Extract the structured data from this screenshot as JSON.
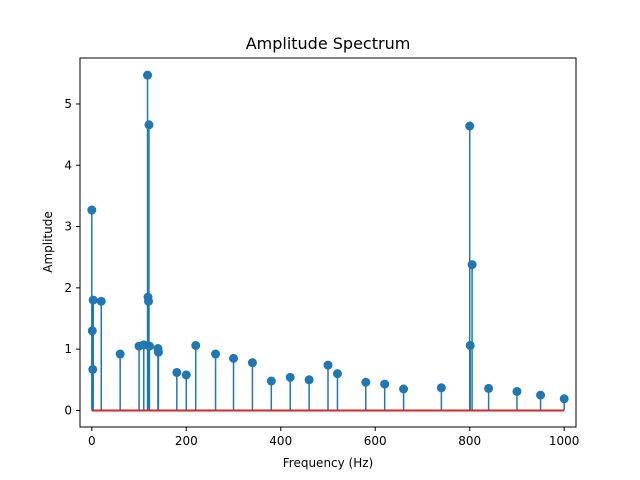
{
  "chart_data": {
    "type": "stem",
    "title": "Amplitude Spectrum",
    "xlabel": "Frequency (Hz)",
    "ylabel": "Amplitude",
    "xlim": [
      -25,
      1025
    ],
    "ylim": [
      -0.27,
      5.75
    ],
    "xticks": [
      0,
      200,
      400,
      600,
      800,
      1000
    ],
    "yticks": [
      0,
      1,
      2,
      3,
      4,
      5
    ],
    "grid": false,
    "colors": {
      "stem": "#1f77b4",
      "baseline": "#d62728"
    },
    "peaks": [
      {
        "x": 0,
        "y": 3.27
      },
      {
        "x": 1,
        "y": 1.3
      },
      {
        "x": 2,
        "y": 0.67
      },
      {
        "x": 3,
        "y": 1.8
      },
      {
        "x": 20,
        "y": 1.78
      },
      {
        "x": 100,
        "y": 1.05
      },
      {
        "x": 110,
        "y": 1.07
      },
      {
        "x": 118,
        "y": 5.47
      },
      {
        "x": 119,
        "y": 1.85
      },
      {
        "x": 120,
        "y": 1.78
      },
      {
        "x": 121,
        "y": 4.66
      },
      {
        "x": 122,
        "y": 1.05
      },
      {
        "x": 140,
        "y": 1.01
      },
      {
        "x": 141,
        "y": 0.95
      },
      {
        "x": 220,
        "y": 1.06
      },
      {
        "x": 800,
        "y": 4.64
      },
      {
        "x": 801,
        "y": 1.06
      },
      {
        "x": 805,
        "y": 2.38
      },
      {
        "x": 60,
        "y": 0.92
      },
      {
        "x": 262,
        "y": 0.92
      },
      {
        "x": 300,
        "y": 0.85
      },
      {
        "x": 340,
        "y": 0.78
      },
      {
        "x": 500,
        "y": 0.74
      },
      {
        "x": 520,
        "y": 0.6
      },
      {
        "x": 580,
        "y": 0.46
      },
      {
        "x": 620,
        "y": 0.43
      },
      {
        "x": 180,
        "y": 0.62
      },
      {
        "x": 200,
        "y": 0.58
      },
      {
        "x": 420,
        "y": 0.54
      },
      {
        "x": 460,
        "y": 0.5
      },
      {
        "x": 380,
        "y": 0.48
      },
      {
        "x": 660,
        "y": 0.35
      },
      {
        "x": 740,
        "y": 0.37
      },
      {
        "x": 840,
        "y": 0.36
      },
      {
        "x": 900,
        "y": 0.31
      },
      {
        "x": 950,
        "y": 0.25
      },
      {
        "x": 1000,
        "y": 0.19
      }
    ]
  }
}
